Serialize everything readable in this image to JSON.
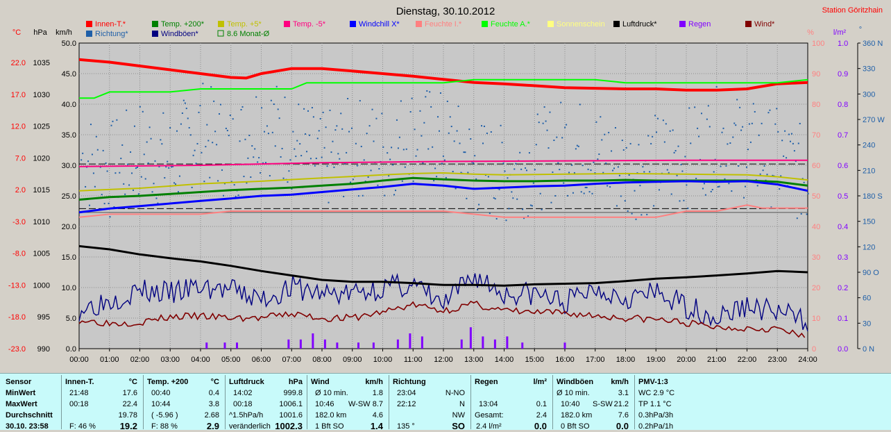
{
  "title": "Dienstag, 30.10.2012",
  "station": "Station Göritzhain",
  "colors": {
    "innen": "#ff0000",
    "richtung": "#1f5fa8",
    "temp200": "#008000",
    "windboen": "#000080",
    "temp5": "#c0c000",
    "monat": "#008000",
    "tempm5": "#ff0080",
    "windchill": "#0000ff",
    "feuchteI": "#ff8080",
    "feuchteA": "#00ff00",
    "sonne": "#ffff80",
    "luftdruck": "#000000",
    "regen": "#8000ff",
    "wind": "#800000",
    "left_axis": "#ff0000",
    "pct_axis": "#ff8080",
    "rain_axis": "#8000ff",
    "dir_axis": "#1f5fa8"
  },
  "legend": [
    {
      "label": "Innen-T.*",
      "color": "#ff0000",
      "key": "innen",
      "kind": "box"
    },
    {
      "label": "Temp. +200*",
      "color": "#008000",
      "key": "temp200",
      "kind": "box"
    },
    {
      "label": "Temp. +5*",
      "color": "#c0c000",
      "key": "temp5",
      "kind": "box"
    },
    {
      "label": "Temp. -5*",
      "color": "#ff0080",
      "key": "tempm5",
      "kind": "box"
    },
    {
      "label": "Windchill X*",
      "color": "#0000ff",
      "key": "windchill",
      "kind": "box"
    },
    {
      "label": "Feuchte I.*",
      "color": "#ff8080",
      "key": "feuchteI",
      "kind": "box"
    },
    {
      "label": "Feuchte A.*",
      "color": "#00ff00",
      "key": "feuchteA",
      "kind": "box"
    },
    {
      "label": "Sonnenschein",
      "color": "#ffff80",
      "key": "sonne",
      "kind": "box"
    },
    {
      "label": "Luftdruck*",
      "color": "#000000",
      "key": "luftdruck",
      "kind": "box"
    },
    {
      "label": "Regen",
      "color": "#8000ff",
      "key": "regen",
      "kind": "box"
    },
    {
      "label": "Wind*",
      "color": "#800000",
      "key": "wind",
      "kind": "box"
    },
    {
      "label": "Richtung*",
      "color": "#1f5fa8",
      "key": "richtung",
      "kind": "box"
    },
    {
      "label": "Windböen*",
      "color": "#000080",
      "key": "windboen",
      "kind": "box"
    },
    {
      "label": "8.6 Monat-Ø",
      "color": "#008000",
      "key": "monat",
      "kind": "hollow"
    }
  ],
  "chart_data": {
    "type": "line",
    "title": "Dienstag, 30.10.2012",
    "x_ticks": [
      "00:00",
      "01:00",
      "02:00",
      "03:00",
      "04:00",
      "05:00",
      "06:00",
      "07:00",
      "08:00",
      "09:00",
      "10:00",
      "11:00",
      "12:00",
      "13:00",
      "14:00",
      "15:00",
      "16:00",
      "17:00",
      "18:00",
      "19:00",
      "20:00",
      "21:00",
      "22:00",
      "23:00",
      "24:00"
    ],
    "xlim": [
      0,
      24
    ],
    "axes": {
      "temp": {
        "unit": "°C",
        "ticks": [
          "22.0",
          "17.0",
          "12.0",
          "7.0",
          "2.0",
          "-3.0",
          "-8.0",
          "-13.0",
          "-18.0",
          "-23.0"
        ],
        "ylim": [
          -23,
          25
        ]
      },
      "pressure": {
        "unit": "hPa",
        "ticks": [
          "1035",
          "1030",
          "1025",
          "1020",
          "1015",
          "1010",
          "1005",
          "1000",
          "995",
          "990"
        ],
        "ylim": [
          990,
          1038
        ]
      },
      "wind": {
        "unit": "km/h",
        "ticks": [
          "50.0",
          "45.0",
          "40.0",
          "35.0",
          "30.0",
          "25.0",
          "20.0",
          "15.0",
          "10.0",
          "5.0",
          "0.0"
        ],
        "ylim": [
          0,
          50
        ]
      },
      "humidity": {
        "unit": "%",
        "ticks": [
          "100",
          "90",
          "80",
          "70",
          "60",
          "50",
          "40",
          "30",
          "20",
          "10",
          "0"
        ],
        "ylim": [
          0,
          100
        ]
      },
      "rain": {
        "unit": "l/m²",
        "ticks": [
          "1.0",
          "0.9",
          "0.8",
          "0.7",
          "0.6",
          "0.5",
          "0.4",
          "0.3",
          "0.2",
          "0.1",
          "0.0"
        ],
        "ylim": [
          0,
          1
        ]
      },
      "direction": {
        "unit": "°",
        "ticks": [
          "360 N",
          "330",
          "300",
          "270 W",
          "240",
          "210",
          "180 S",
          "150",
          "120",
          "90 O",
          "60",
          "30",
          "0 N"
        ],
        "ylim": [
          0,
          360
        ]
      }
    },
    "ref_lines_temp": [
      6.0,
      -1.0
    ],
    "series": [
      {
        "name": "Innen-T.*",
        "axis": "temp",
        "color": "#ff0000",
        "width": 4,
        "x": [
          0,
          1,
          2,
          3,
          4,
          5,
          5.5,
          6,
          7,
          8,
          9,
          10,
          11,
          12,
          13,
          14,
          15,
          16,
          17,
          18,
          19,
          20,
          21,
          22,
          23,
          24
        ],
        "y": [
          22.4,
          22.0,
          21.4,
          20.8,
          20.2,
          19.6,
          19.5,
          20.2,
          21.0,
          21.0,
          20.6,
          20.2,
          19.8,
          19.3,
          18.8,
          18.6,
          18.3,
          18.0,
          17.9,
          17.8,
          17.8,
          17.6,
          17.6,
          17.8,
          18.6,
          18.8
        ]
      },
      {
        "name": "Feuchte A.*",
        "axis": "humidity",
        "color": "#00ff00",
        "width": 2,
        "x": [
          0,
          0.5,
          1,
          2,
          3,
          4,
          5,
          6,
          7,
          7.5,
          8,
          9,
          10,
          11,
          12,
          13,
          14,
          15,
          16,
          17,
          18,
          19,
          20,
          21,
          22,
          23,
          24
        ],
        "y": [
          82,
          82,
          84,
          84,
          84,
          85,
          85,
          85,
          85,
          87,
          87,
          87,
          87,
          87,
          87,
          88,
          88,
          88,
          88,
          88,
          87,
          87,
          87,
          87,
          87,
          87,
          88
        ]
      },
      {
        "name": "Temp. -5*",
        "axis": "temp",
        "color": "#ff0080",
        "width": 2,
        "x": [
          0,
          4,
          8,
          12,
          16,
          20,
          24
        ],
        "y": [
          5.6,
          5.8,
          6.2,
          6.4,
          6.5,
          6.6,
          6.6
        ]
      },
      {
        "name": "Temp. +5*",
        "axis": "temp",
        "color": "#c0c000",
        "width": 2,
        "x": [
          0,
          2,
          4,
          6,
          8,
          10,
          11,
          12,
          13,
          14,
          16,
          18,
          20,
          22,
          23,
          24
        ],
        "y": [
          1.8,
          2.2,
          2.9,
          3.3,
          3.8,
          4.3,
          4.5,
          4.6,
          4.4,
          4.3,
          4.4,
          4.5,
          4.4,
          4.3,
          4.0,
          3.5
        ]
      },
      {
        "name": "Temp. +200*",
        "axis": "temp",
        "color": "#008000",
        "width": 3,
        "x": [
          0,
          1,
          2,
          3,
          4,
          5,
          6,
          7,
          8,
          9,
          10,
          11,
          12,
          13,
          14,
          15,
          16,
          17,
          18,
          19,
          20,
          21,
          22,
          23,
          24
        ],
        "y": [
          0.4,
          0.8,
          1.0,
          1.3,
          1.6,
          1.9,
          2.1,
          2.3,
          2.6,
          2.9,
          3.4,
          3.8,
          3.6,
          3.4,
          3.3,
          3.3,
          3.4,
          3.4,
          3.5,
          3.4,
          3.4,
          3.4,
          3.4,
          3.2,
          2.6
        ]
      },
      {
        "name": "Windchill X*",
        "axis": "temp",
        "color": "#0000ff",
        "width": 3,
        "x": [
          0,
          1,
          2,
          3,
          4,
          5,
          6,
          7,
          8,
          9,
          10,
          11,
          12,
          13,
          14,
          15,
          16,
          17,
          18,
          19,
          20,
          21,
          22,
          23,
          24
        ],
        "y": [
          -1.6,
          -1.0,
          -0.6,
          -0.2,
          0.2,
          0.6,
          1.0,
          1.2,
          1.6,
          2.0,
          2.4,
          2.9,
          2.6,
          2.1,
          2.3,
          2.5,
          2.6,
          2.9,
          3.1,
          3.2,
          3.3,
          3.2,
          3.3,
          2.8,
          1.8
        ]
      },
      {
        "name": "Feuchte I.*",
        "axis": "humidity",
        "color": "#ff8080",
        "width": 2,
        "x": [
          0,
          1,
          2,
          3,
          4,
          5,
          6,
          7,
          8,
          9,
          10,
          11,
          12,
          13,
          14,
          15,
          16,
          17,
          18,
          19,
          20,
          21,
          21.5,
          22,
          22.5,
          23,
          24
        ],
        "y": [
          43,
          44,
          44,
          44,
          44,
          45,
          45,
          45,
          45,
          45,
          45,
          45,
          45,
          44,
          43,
          43,
          43,
          43,
          43,
          43,
          45,
          45,
          46,
          47,
          46,
          46,
          46
        ]
      },
      {
        "name": "Luftdruck*",
        "axis": "pressure",
        "color": "#000000",
        "width": 3,
        "x": [
          0,
          1,
          2,
          3,
          4,
          5,
          6,
          7,
          8,
          9,
          10,
          11,
          12,
          13,
          14,
          15,
          16,
          17,
          18,
          19,
          20,
          21,
          22,
          23,
          24
        ],
        "y": [
          1006.1,
          1005.6,
          1004.8,
          1004.2,
          1003.7,
          1003.0,
          1002.2,
          1001.5,
          1000.8,
          1000.5,
          1000.5,
          1000.3,
          1000.0,
          1000.0,
          999.9,
          1000.1,
          1000.2,
          1000.3,
          1000.6,
          1001.0,
          1001.2,
          1001.5,
          1001.8,
          1002.2,
          1002.0
        ]
      }
    ],
    "gust_hourly": {
      "x": [
        0,
        1,
        2,
        3,
        4,
        5,
        6,
        7,
        8,
        9,
        10,
        11,
        12,
        13,
        14,
        15,
        16,
        17,
        18,
        19,
        20,
        21,
        22,
        23,
        24
      ],
      "y": [
        6.5,
        8,
        9.5,
        9,
        10,
        9.5,
        8,
        10,
        9,
        9,
        10,
        10.5,
        7,
        12,
        9,
        9,
        7.5,
        10,
        8.5,
        9,
        7,
        5,
        7,
        6,
        4.5
      ]
    },
    "wind_hourly": {
      "x": [
        0,
        1,
        2,
        3,
        4,
        5,
        6,
        7,
        8,
        9,
        10,
        11,
        12,
        13,
        14,
        15,
        16,
        17,
        18,
        19,
        20,
        21,
        22,
        23,
        24
      ],
      "y": [
        4.7,
        4.2,
        4.3,
        5.2,
        5.3,
        5.0,
        5.0,
        5.7,
        5.0,
        5.0,
        6.0,
        7.2,
        6.2,
        7.3,
        6.2,
        5.9,
        5.8,
        5.4,
        5.0,
        4.8,
        4.2,
        3.5,
        3.4,
        3.3,
        1.6
      ]
    },
    "direction_sampled": {
      "x": [
        0,
        1,
        2,
        3,
        4,
        5,
        6,
        7,
        8,
        9,
        10,
        11,
        12,
        13,
        14,
        15,
        16,
        17,
        18,
        19,
        20,
        21,
        22,
        23,
        24
      ],
      "y": [
        225,
        210,
        235,
        220,
        260,
        230,
        270,
        245,
        220,
        240,
        230,
        255,
        245,
        215,
        205,
        220,
        240,
        230,
        210,
        220,
        225,
        250,
        235,
        225,
        200
      ]
    },
    "rain_bars": [
      {
        "x": 4.2,
        "v": 0.02
      },
      {
        "x": 4.8,
        "v": 0.02
      },
      {
        "x": 5.2,
        "v": 0.02
      },
      {
        "x": 6.9,
        "v": 0.03
      },
      {
        "x": 7.3,
        "v": 0.03
      },
      {
        "x": 7.7,
        "v": 0.05
      },
      {
        "x": 8.1,
        "v": 0.03
      },
      {
        "x": 8.5,
        "v": 0.02
      },
      {
        "x": 9.2,
        "v": 0.02
      },
      {
        "x": 9.7,
        "v": 0.02
      },
      {
        "x": 10.5,
        "v": 0.03
      },
      {
        "x": 10.9,
        "v": 0.05
      },
      {
        "x": 11.3,
        "v": 0.04
      },
      {
        "x": 12.6,
        "v": 0.03
      },
      {
        "x": 12.9,
        "v": 0.07
      },
      {
        "x": 13.3,
        "v": 0.04
      },
      {
        "x": 13.7,
        "v": 0.03
      },
      {
        "x": 14.1,
        "v": 0.04
      },
      {
        "x": 14.6,
        "v": 0.02
      },
      {
        "x": 16.0,
        "v": 0.02
      }
    ]
  },
  "table": {
    "col1": {
      "header": "Sensor",
      "rows": [
        "MinWert",
        "MaxWert",
        "Durchschnitt",
        "30.10. 23:58"
      ]
    },
    "innen": {
      "header": "Innen-T.",
      "unit": "°C",
      "min_time": "21:48",
      "min": "17.6",
      "max_time": "00:18",
      "max": "22.4",
      "avg": "19.78",
      "cur_label": "F: 46 %",
      "cur": "19.2"
    },
    "temp200": {
      "header": "Temp. +200",
      "unit": "°C",
      "min_time": "00:40",
      "min": "0.4",
      "max_time": "10:44",
      "max": "3.8",
      "avg_label": "( -5.96 )",
      "avg": "2.68",
      "cur_label": "F: 88 %",
      "cur": "2.9"
    },
    "luft": {
      "header": "Luftdruck",
      "unit": "hPa",
      "min_time": "14:02",
      "min": "999.8",
      "max_time": "00:18",
      "max": "1006.1",
      "avg_label": "^1.5hPa/h",
      "avg": "1001.6",
      "cur_label": "veränderlich",
      "cur": "1002.3"
    },
    "wind": {
      "header": "Wind",
      "unit": "km/h",
      "r1_label": "Ø 10 min.",
      "r1": "1.8",
      "r2_time": "10:46",
      "r2_dir": "W-SW",
      "r2": "8.7",
      "r3_label": "182.0 km",
      "r3": "4.6",
      "r4_label": "1 Bft SO",
      "r4": "1.4"
    },
    "richtung": {
      "header": "Richtung",
      "r1_time": "23:04",
      "r1": "N-NO",
      "r2_time": "22:12",
      "r2": "N",
      "r3": "NW",
      "r4_label": "135 °",
      "r4": "SO"
    },
    "regen": {
      "header": "Regen",
      "unit": "l/m²",
      "r2_time": "13:04",
      "r2": "0.1",
      "r3_label": "Gesamt:",
      "r3": "2.4",
      "r4_label": "2.4 l/m²",
      "r4": "0.0"
    },
    "boen": {
      "header": "Windböen",
      "unit": "km/h",
      "r1_label": "Ø 10 min.",
      "r1": "3.1",
      "r2_time": "10:40",
      "r2_dir": "S-SW",
      "r2": "21.2",
      "r3_label": "182.0 km",
      "r3": "7.6",
      "r4_label": "0 Bft SO",
      "r4": "0.0"
    },
    "pmv": {
      "header": "PMV-1:3",
      "r1": "WC 2.9 °C",
      "r2": "TP 1.1 °C",
      "r3": "0.3hPa/3h",
      "r4": "0.2hPa/1h"
    }
  }
}
